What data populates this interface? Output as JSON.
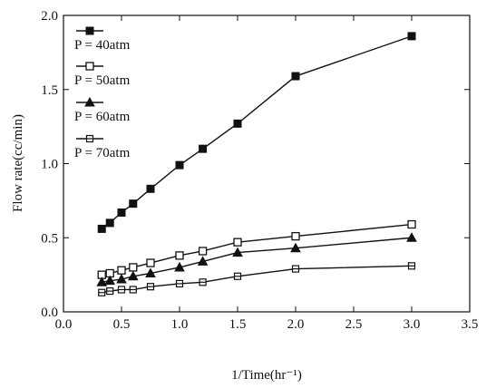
{
  "chart_data": {
    "type": "line",
    "xlabel": "1/Time(hr⁻¹)",
    "ylabel": "Flow rate(cc/min)",
    "xlim": [
      0.0,
      3.5
    ],
    "ylim": [
      0.0,
      2.0
    ],
    "xticks": [
      "0.0",
      "0.5",
      "1.0",
      "1.5",
      "2.0",
      "2.5",
      "3.0",
      "3.5"
    ],
    "yticks": [
      "0.0",
      "0.5",
      "1.0",
      "1.5",
      "2.0"
    ],
    "grid": false,
    "legend_position": "top-left",
    "series": [
      {
        "name": "P = 40atm",
        "marker": "filled-square",
        "points": [
          [
            0.33,
            0.56
          ],
          [
            0.4,
            0.6
          ],
          [
            0.5,
            0.67
          ],
          [
            0.6,
            0.73
          ],
          [
            0.75,
            0.83
          ],
          [
            1.0,
            0.99
          ],
          [
            1.2,
            1.1
          ],
          [
            1.5,
            1.27
          ],
          [
            2.0,
            1.59
          ],
          [
            3.0,
            1.86
          ]
        ]
      },
      {
        "name": "P = 50atm",
        "marker": "open-square",
        "points": [
          [
            0.33,
            0.25
          ],
          [
            0.4,
            0.26
          ],
          [
            0.5,
            0.28
          ],
          [
            0.6,
            0.3
          ],
          [
            0.75,
            0.33
          ],
          [
            1.0,
            0.38
          ],
          [
            1.2,
            0.41
          ],
          [
            1.5,
            0.47
          ],
          [
            2.0,
            0.51
          ],
          [
            3.0,
            0.59
          ]
        ]
      },
      {
        "name": "P = 60atm",
        "marker": "filled-triangle",
        "points": [
          [
            0.33,
            0.2
          ],
          [
            0.4,
            0.21
          ],
          [
            0.5,
            0.22
          ],
          [
            0.6,
            0.24
          ],
          [
            0.75,
            0.26
          ],
          [
            1.0,
            0.3
          ],
          [
            1.2,
            0.34
          ],
          [
            1.5,
            0.4
          ],
          [
            2.0,
            0.43
          ],
          [
            3.0,
            0.5
          ]
        ]
      },
      {
        "name": "P = 70atm",
        "marker": "crossed-square",
        "points": [
          [
            0.33,
            0.13
          ],
          [
            0.4,
            0.14
          ],
          [
            0.5,
            0.15
          ],
          [
            0.6,
            0.15
          ],
          [
            0.75,
            0.17
          ],
          [
            1.0,
            0.19
          ],
          [
            1.2,
            0.2
          ],
          [
            1.5,
            0.24
          ],
          [
            2.0,
            0.29
          ],
          [
            3.0,
            0.31
          ]
        ]
      }
    ]
  }
}
